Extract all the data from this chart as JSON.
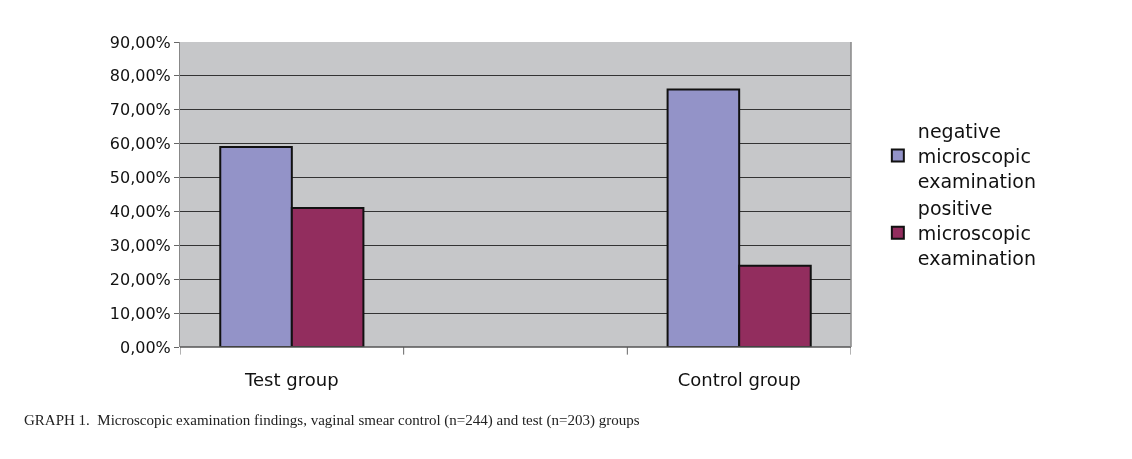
{
  "chart_data": {
    "type": "bar",
    "categories": [
      "Test group",
      null,
      "Control group"
    ],
    "series": [
      {
        "name": "negative microscopic examination",
        "color": "#9393c8",
        "values": [
          59,
          null,
          76
        ]
      },
      {
        "name": "positive microscopic examination",
        "color": "#922d5e",
        "values": [
          41,
          null,
          24
        ]
      }
    ],
    "ylim": [
      0,
      90
    ],
    "yticks": [
      {
        "value": 0,
        "label": "0,00%"
      },
      {
        "value": 10,
        "label": "10,00%"
      },
      {
        "value": 20,
        "label": "20,00%"
      },
      {
        "value": 30,
        "label": "30,00%"
      },
      {
        "value": 40,
        "label": "40,00%"
      },
      {
        "value": 50,
        "label": "50,00%"
      },
      {
        "value": 60,
        "label": "60,00%"
      },
      {
        "value": 70,
        "label": "70,00%"
      },
      {
        "value": 80,
        "label": "80,00%"
      },
      {
        "value": 90,
        "label": "90,00%"
      }
    ],
    "grid": "y",
    "legend": "right",
    "annotations": [
      "GRAPH 1.  Microscopic examination findings, vaginal smear control (n=244) and test (n=203) groups"
    ]
  }
}
